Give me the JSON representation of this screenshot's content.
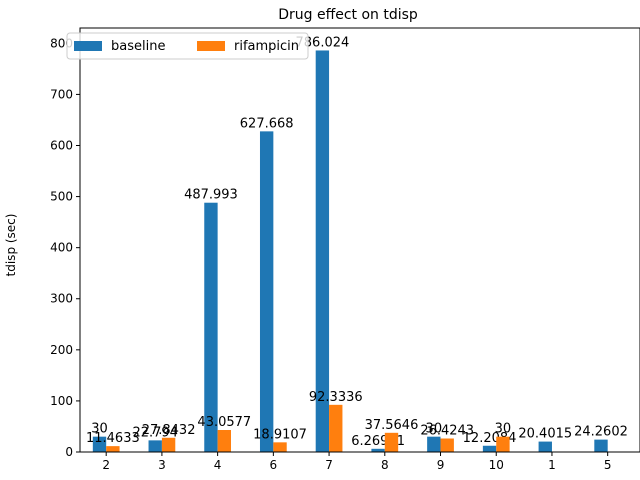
{
  "chart_data": {
    "type": "bar",
    "title": "Drug effect on tdisp",
    "xlabel": "",
    "ylabel": "tdisp (sec)",
    "categories": [
      "2",
      "3",
      "4",
      "6",
      "7",
      "8",
      "9",
      "10",
      "1",
      "5"
    ],
    "series": [
      {
        "name": "baseline",
        "color": "#1f77b4",
        "values": [
          30,
          22.794,
          487.993,
          627.668,
          786.024,
          6.26961,
          30,
          12.2084,
          20.4015,
          24.2602
        ],
        "labels": [
          "30",
          "22.794",
          "487.993",
          "627.668",
          "786.024",
          "6.26961",
          "30",
          "12.2084",
          "20.4015",
          "24.2602"
        ]
      },
      {
        "name": "rifampicin",
        "color": "#ff7f0e",
        "values": [
          11.4633,
          27.8432,
          43.0577,
          18.9107,
          92.3336,
          37.5646,
          26.4243,
          30,
          null,
          null
        ],
        "labels": [
          "11.4633",
          "27.8432",
          "43.0577",
          "18.9107",
          "92.3336",
          "37.5646",
          "26.4243",
          "30",
          null,
          null
        ]
      }
    ],
    "ylim": [
      0,
      830
    ],
    "yticks": [
      0,
      100,
      200,
      300,
      400,
      500,
      600,
      700,
      800
    ],
    "grid": false,
    "legend": "top-left, 2 columns"
  }
}
